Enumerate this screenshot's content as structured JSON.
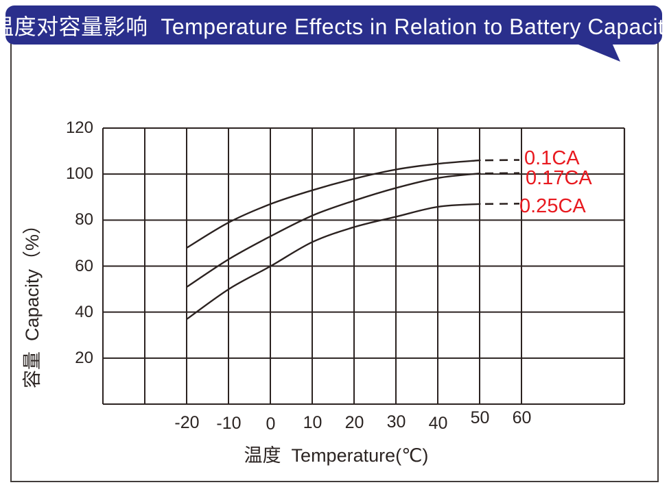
{
  "header": {
    "title": "温度对容量影响  Temperature Effects in Relation to Battery Capacity"
  },
  "colors": {
    "banner_blue": "#2a2f8c",
    "curve_label_red": "#e8191f",
    "ink_black": "#2b2220",
    "frame_gray": "#413c3a"
  },
  "chart_data": {
    "type": "line",
    "title": "温度对容量影响 Temperature Effects in Relation to Battery Capacity",
    "xlabel": "温度  Temperature(℃)",
    "ylabel": "容量  Capacity（%）",
    "x": [
      -20,
      -10,
      0,
      10,
      20,
      30,
      40,
      50
    ],
    "series": [
      {
        "name": "0.1CA",
        "values": [
          68,
          79,
          87,
          93,
          98,
          102,
          104.5,
          106
        ],
        "dashed_tail": true
      },
      {
        "name": "0.17CA",
        "values": [
          51,
          63,
          73,
          82,
          88.5,
          94,
          98.3,
          100.3
        ],
        "dashed_tail": true
      },
      {
        "name": "0.25CA",
        "values": [
          37,
          50,
          60,
          70.5,
          77,
          81.5,
          85.8,
          87
        ],
        "dashed_tail": true
      }
    ],
    "xticks": [
      -20,
      -10,
      0,
      10,
      20,
      30,
      40,
      50,
      60
    ],
    "yticks": [
      120,
      100,
      80,
      60,
      40,
      20
    ],
    "xlim_grid": [
      -40,
      60
    ],
    "ylim": [
      0,
      120
    ],
    "grid": true,
    "legend_position": "right-of-curve-ends",
    "layout_hints": {
      "xtick_dy": [
        0,
        1,
        2,
        0,
        0,
        -1,
        1,
        -7,
        -7
      ],
      "curve_label_lefts": [
        764,
        766,
        757
      ],
      "curve_label_tops": [
        216,
        245,
        286
      ]
    }
  }
}
